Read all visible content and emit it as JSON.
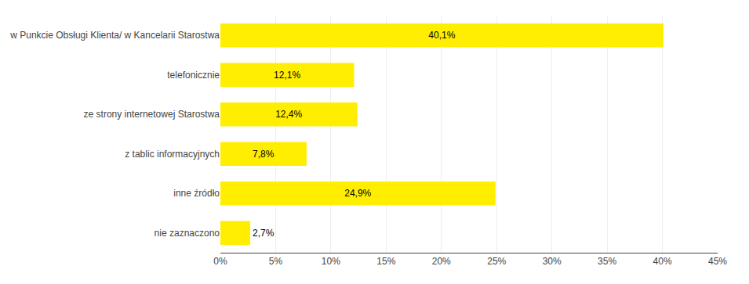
{
  "chart_data": {
    "type": "bar",
    "orientation": "horizontal",
    "categories": [
      "w Punkcie Obsługi Klienta/ w Kancelarii Starostwa",
      "telefonicznie",
      "ze strony internetowej Starostwa",
      "z tablic informacyjnych",
      "inne źródło",
      "nie zaznaczono"
    ],
    "values": [
      40.1,
      12.1,
      12.4,
      7.8,
      24.9,
      2.7
    ],
    "value_labels": [
      "40,1%",
      "12,1%",
      "12,4%",
      "7,8%",
      "24,9%",
      "2,7%"
    ],
    "data_labels": true,
    "color": "#FFEE00",
    "xlim": [
      0,
      45
    ],
    "xticks": [
      {
        "value": 0,
        "label": "0%"
      },
      {
        "value": 5,
        "label": "5%"
      },
      {
        "value": 10,
        "label": "10%"
      },
      {
        "value": 15,
        "label": "15%"
      },
      {
        "value": 20,
        "label": "20%"
      },
      {
        "value": 25,
        "label": "25%"
      },
      {
        "value": 30,
        "label": "30%"
      },
      {
        "value": 35,
        "label": "35%"
      },
      {
        "value": 40,
        "label": "40%"
      },
      {
        "value": 45,
        "label": "45%"
      }
    ],
    "grid": true
  }
}
